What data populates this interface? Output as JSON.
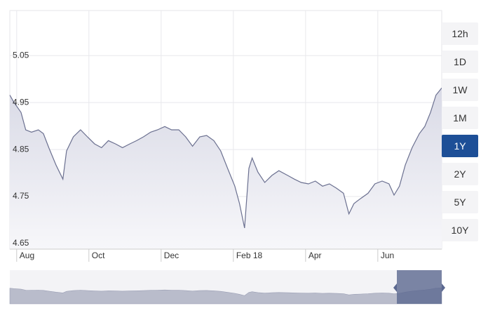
{
  "chart_data": {
    "type": "line",
    "x": [
      -0.19,
      -0.08,
      0.12,
      0.25,
      0.41,
      0.6,
      0.74,
      0.89,
      1.09,
      1.28,
      1.38,
      1.57,
      1.77,
      1.96,
      2.16,
      2.35,
      2.54,
      2.74,
      2.93,
      3.13,
      3.32,
      3.51,
      3.71,
      3.9,
      4.1,
      4.29,
      4.49,
      4.68,
      4.87,
      5.07,
      5.26,
      5.46,
      5.65,
      5.84,
      6.04,
      6.17,
      6.31,
      6.43,
      6.52,
      6.68,
      6.87,
      7.07,
      7.26,
      7.5,
      7.69,
      7.88,
      8.08,
      8.27,
      8.47,
      8.66,
      8.85,
      9.05,
      9.2,
      9.34,
      9.53,
      9.73,
      9.92,
      10.12,
      10.31,
      10.45,
      10.6,
      10.76,
      10.95,
      11.15,
      11.3,
      11.46,
      11.61,
      11.77
    ],
    "values": [
      4.966,
      4.951,
      4.929,
      4.892,
      4.887,
      4.892,
      4.884,
      4.854,
      4.817,
      4.787,
      4.847,
      4.877,
      4.892,
      4.877,
      4.862,
      4.854,
      4.869,
      4.862,
      4.854,
      4.862,
      4.869,
      4.877,
      4.887,
      4.892,
      4.899,
      4.892,
      4.892,
      4.877,
      4.857,
      4.877,
      4.88,
      4.869,
      4.847,
      4.81,
      4.772,
      4.735,
      4.683,
      4.81,
      4.832,
      4.802,
      4.78,
      4.795,
      4.805,
      4.795,
      4.787,
      4.78,
      4.777,
      4.783,
      4.772,
      4.777,
      4.768,
      4.757,
      4.713,
      4.735,
      4.746,
      4.757,
      4.777,
      4.783,
      4.777,
      4.753,
      4.772,
      4.817,
      4.854,
      4.884,
      4.899,
      4.929,
      4.966,
      4.981
    ],
    "color": "#6b7090",
    "xlim": [
      -0.19,
      11.77
    ],
    "xticks": [
      {
        "value": 0,
        "label": "Aug"
      },
      {
        "value": 2,
        "label": "Oct"
      },
      {
        "value": 4,
        "label": "Dec"
      },
      {
        "value": 6,
        "label": "Feb 18"
      },
      {
        "value": 8,
        "label": "Apr"
      },
      {
        "value": 10,
        "label": "Jun"
      }
    ],
    "ylim": [
      4.638,
      5.146
    ],
    "yticks": [
      4.65,
      4.75,
      4.85,
      4.95,
      5.05
    ],
    "grid": true
  },
  "range_buttons": [
    "12h",
    "1D",
    "1W",
    "1M",
    "1Y",
    "2Y",
    "5Y",
    "10Y"
  ],
  "selected_range": "1Y"
}
